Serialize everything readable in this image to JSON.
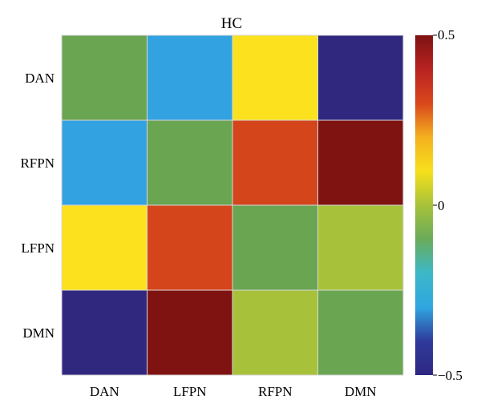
{
  "chart_data": {
    "type": "heatmap",
    "title": "HC",
    "x_categories": [
      "DAN",
      "LFPN",
      "RFPN",
      "DMN"
    ],
    "y_categories": [
      "DAN",
      "RFPN",
      "LFPN",
      "DMN"
    ],
    "values": [
      [
        0.0,
        -0.22,
        0.12,
        -0.45
      ],
      [
        -0.22,
        0.0,
        0.28,
        0.45
      ],
      [
        0.12,
        0.28,
        0.0,
        0.05
      ],
      [
        -0.45,
        0.45,
        0.05,
        0.0
      ]
    ],
    "colorbar": {
      "min": -0.5,
      "max": 0.5,
      "tick_labels": [
        "0.5",
        "0",
        "−0.5"
      ],
      "tick_values": [
        0.5,
        0,
        -0.5
      ],
      "colors": [
        "#2e2882",
        "#2f3a9a",
        "#30a6e0",
        "#3cb8c8",
        "#6aab5a",
        "#a7c23a",
        "#f6e01c",
        "#f4b01f",
        "#d9471c",
        "#b82222",
        "#7d1212"
      ]
    },
    "cell_colors": [
      [
        "#6aa552",
        "#33a2e0",
        "#fbe11e",
        "#30287f"
      ],
      [
        "#33a2e0",
        "#6aa552",
        "#d4451b",
        "#7f1311"
      ],
      [
        "#fbe11e",
        "#d4451b",
        "#6aa552",
        "#a7c23a"
      ],
      [
        "#30287f",
        "#7f1311",
        "#a7c23a",
        "#6aa552"
      ]
    ]
  }
}
